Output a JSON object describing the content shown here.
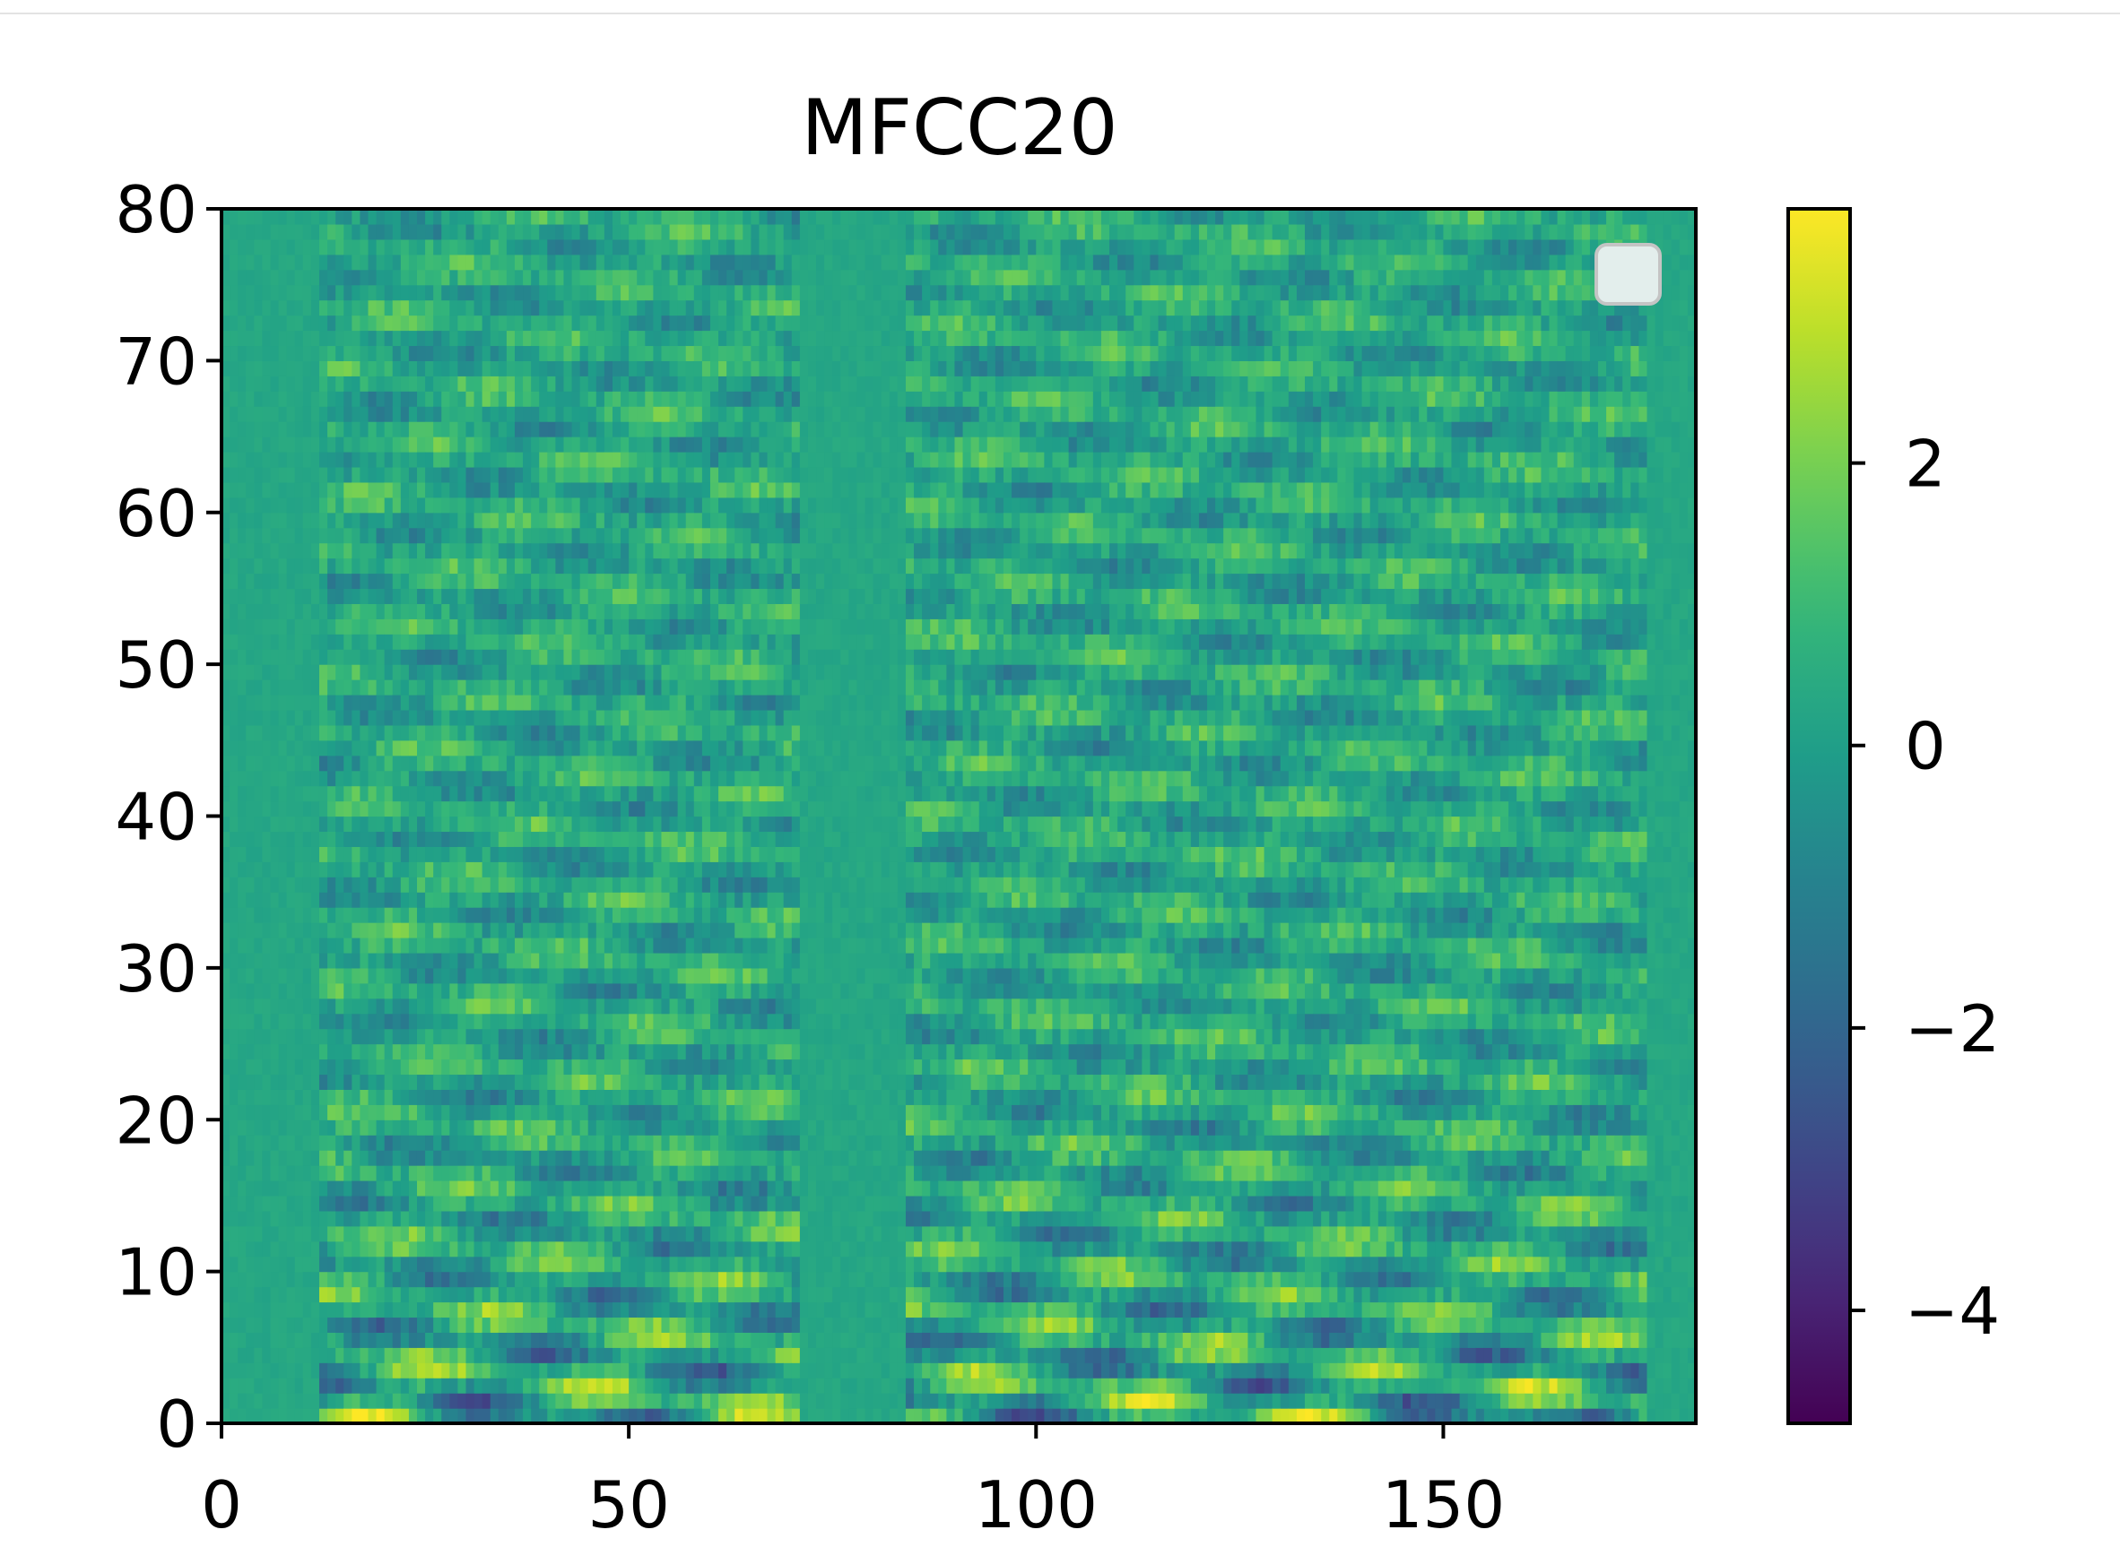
{
  "chart_data": {
    "type": "heatmap",
    "title": "MFCC20",
    "xlabel": "",
    "ylabel": "",
    "xlim": [
      0,
      181
    ],
    "ylim": [
      0,
      80
    ],
    "x_ticks": [
      0,
      50,
      100,
      150
    ],
    "x_tick_labels": [
      "0",
      "50",
      "100",
      "150"
    ],
    "y_ticks": [
      0,
      10,
      20,
      30,
      40,
      50,
      60,
      70,
      80
    ],
    "y_tick_labels": [
      "0",
      "10",
      "20",
      "30",
      "40",
      "50",
      "60",
      "70",
      "80"
    ],
    "colorbar": {
      "colormap": "viridis",
      "range": [
        -4.8,
        3.8
      ],
      "ticks": [
        2,
        0,
        -2,
        -4
      ],
      "tick_labels": [
        "2",
        "0",
        "−2",
        "−4"
      ]
    },
    "legend": {
      "location": "top-right",
      "entries": []
    },
    "grid": false,
    "grid_shape": {
      "frames": 181,
      "coefficients": 80
    },
    "speech_segments": [
      [
        12,
        70
      ],
      [
        84,
        174
      ]
    ],
    "neutral_value": 0.3
  }
}
